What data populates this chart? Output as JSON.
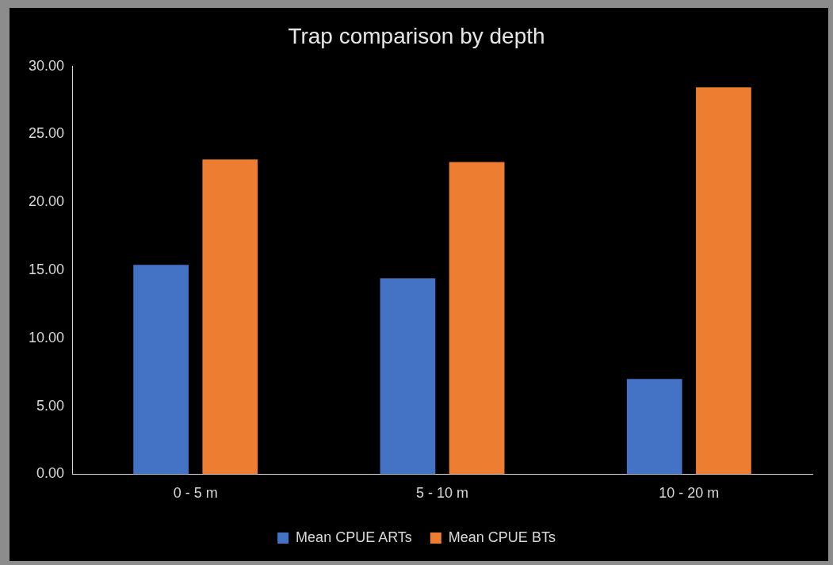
{
  "chart_data": {
    "type": "bar",
    "title": "Trap comparison by depth",
    "categories": [
      "0 - 5 m",
      "5 - 10 m",
      "10 - 20 m"
    ],
    "series": [
      {
        "name": "Mean CPUE ARTs",
        "color": "#4472c4",
        "values": [
          15.4,
          14.4,
          7.0
        ]
      },
      {
        "name": "Mean CPUE BTs",
        "color": "#ed7d31",
        "values": [
          23.15,
          22.95,
          28.45
        ]
      }
    ],
    "ylim": [
      0,
      30
    ],
    "yticks": [
      {
        "value": 0,
        "label": "0.00"
      },
      {
        "value": 5,
        "label": "5.00"
      },
      {
        "value": 10,
        "label": "10.00"
      },
      {
        "value": 15,
        "label": "15.00"
      },
      {
        "value": 20,
        "label": "20.00"
      },
      {
        "value": 25,
        "label": "25.00"
      },
      {
        "value": 30,
        "label": "30.00"
      }
    ],
    "grid": false,
    "legend": "bottom"
  }
}
